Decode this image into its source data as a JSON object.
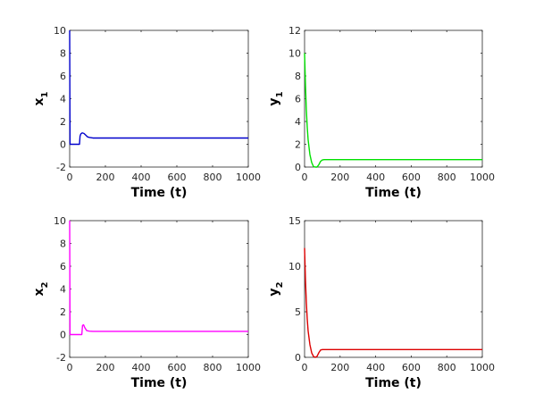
{
  "chart_data": [
    {
      "type": "line",
      "ylabel_main": "x",
      "ylabel_sub": "1",
      "xlabel": "Time (t)",
      "xlim": [
        0,
        1000
      ],
      "ylim": [
        -2,
        10
      ],
      "xticks": [
        "0",
        "200",
        "400",
        "600",
        "800",
        "1000"
      ],
      "yticks": [
        "-2",
        "0",
        "2",
        "4",
        "6",
        "8",
        "10"
      ],
      "color": "#0000cc",
      "series": [
        {
          "x": [
            0,
            2,
            4,
            6,
            10,
            20,
            40,
            55,
            58,
            62,
            70,
            80,
            90,
            100,
            110,
            130,
            200,
            400,
            600,
            800,
            1000
          ],
          "y": [
            10,
            0,
            0,
            0,
            0,
            0,
            0,
            0,
            0.7,
            0.9,
            1.0,
            0.95,
            0.8,
            0.65,
            0.6,
            0.55,
            0.55,
            0.55,
            0.55,
            0.55,
            0.55
          ]
        }
      ]
    },
    {
      "type": "line",
      "ylabel_main": "y",
      "ylabel_sub": "1",
      "xlabel": "Time (t)",
      "xlim": [
        0,
        1000
      ],
      "ylim": [
        0,
        12
      ],
      "xticks": [
        "0",
        "200",
        "400",
        "600",
        "800",
        "1000"
      ],
      "yticks": [
        "0",
        "2",
        "4",
        "6",
        "8",
        "10",
        "12"
      ],
      "color": "#00e000",
      "series": [
        {
          "x": [
            0,
            5,
            10,
            15,
            20,
            30,
            40,
            50,
            60,
            70,
            80,
            90,
            100,
            110,
            130,
            200,
            400,
            600,
            800,
            1000
          ],
          "y": [
            10,
            7.2,
            5.0,
            3.5,
            2.4,
            1.1,
            0.4,
            0.05,
            0,
            0,
            0.2,
            0.5,
            0.62,
            0.65,
            0.65,
            0.65,
            0.65,
            0.65,
            0.65,
            0.65
          ]
        }
      ]
    },
    {
      "type": "line",
      "ylabel_main": "x",
      "ylabel_sub": "2",
      "xlabel": "Time (t)",
      "xlim": [
        0,
        1000
      ],
      "ylim": [
        -2,
        10
      ],
      "xticks": [
        "0",
        "200",
        "400",
        "600",
        "800",
        "1000"
      ],
      "yticks": [
        "-2",
        "0",
        "2",
        "4",
        "6",
        "8",
        "10"
      ],
      "color": "#ff00ff",
      "series": [
        {
          "x": [
            0,
            2,
            4,
            6,
            10,
            30,
            60,
            68,
            72,
            78,
            85,
            95,
            110,
            130,
            200,
            400,
            600,
            800,
            1000
          ],
          "y": [
            10,
            0,
            0,
            0,
            0,
            0,
            0,
            0,
            0.8,
            0.85,
            0.6,
            0.35,
            0.3,
            0.28,
            0.28,
            0.28,
            0.28,
            0.28,
            0.28
          ]
        }
      ]
    },
    {
      "type": "line",
      "ylabel_main": "y",
      "ylabel_sub": "2",
      "xlabel": "Time (t)",
      "xlim": [
        0,
        1000
      ],
      "ylim": [
        0,
        15
      ],
      "xticks": [
        "0",
        "200",
        "400",
        "600",
        "800",
        "1000"
      ],
      "yticks": [
        "0",
        "5",
        "10",
        "15"
      ],
      "color": "#dd0000",
      "series": [
        {
          "x": [
            0,
            5,
            10,
            15,
            20,
            30,
            40,
            50,
            60,
            70,
            80,
            90,
            100,
            110,
            130,
            200,
            400,
            600,
            800,
            1000
          ],
          "y": [
            12,
            8.5,
            6.0,
            4.2,
            2.9,
            1.4,
            0.5,
            0.1,
            0,
            0.1,
            0.5,
            0.8,
            0.85,
            0.85,
            0.85,
            0.85,
            0.85,
            0.85,
            0.85,
            0.85
          ]
        }
      ]
    }
  ]
}
